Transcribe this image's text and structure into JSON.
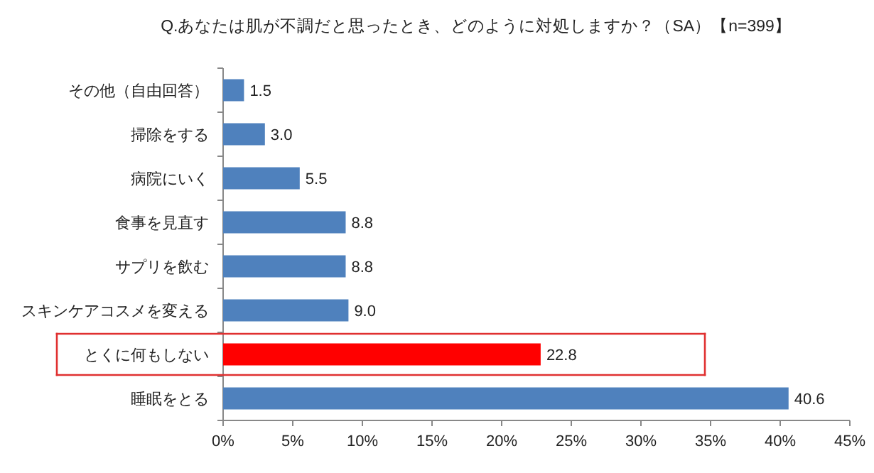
{
  "chart_data": {
    "type": "bar",
    "orientation": "horizontal",
    "title": "Q.あなたは肌が不調だと思ったとき、どのように対処しますか？（SA）【n=399】",
    "categories": [
      "その他（自由回答）",
      "掃除をする",
      "病院にいく",
      "食事を見直す",
      "サプリを飲む",
      "スキンケアコスメを変える",
      "とくに何もしない",
      "睡眠をとる"
    ],
    "values": [
      1.5,
      3.0,
      5.5,
      8.8,
      8.8,
      9.0,
      22.8,
      40.6
    ],
    "colors": [
      "#4f81bd",
      "#4f81bd",
      "#4f81bd",
      "#4f81bd",
      "#4f81bd",
      "#4f81bd",
      "#ff0000",
      "#4f81bd"
    ],
    "value_labels": [
      "1.5",
      "3.0",
      "5.5",
      "8.8",
      "8.8",
      "9.0",
      "22.8",
      "40.6"
    ],
    "xlim": [
      0,
      45
    ],
    "xticks": [
      {
        "value": 0,
        "label": "0%"
      },
      {
        "value": 5,
        "label": "5%"
      },
      {
        "value": 10,
        "label": "10%"
      },
      {
        "value": 15,
        "label": "15%"
      },
      {
        "value": 20,
        "label": "20%"
      },
      {
        "value": 25,
        "label": "25%"
      },
      {
        "value": 30,
        "label": "30%"
      },
      {
        "value": 35,
        "label": "35%"
      },
      {
        "value": 40,
        "label": "40%"
      },
      {
        "value": 45,
        "label": "45%"
      }
    ],
    "grid": false
  }
}
